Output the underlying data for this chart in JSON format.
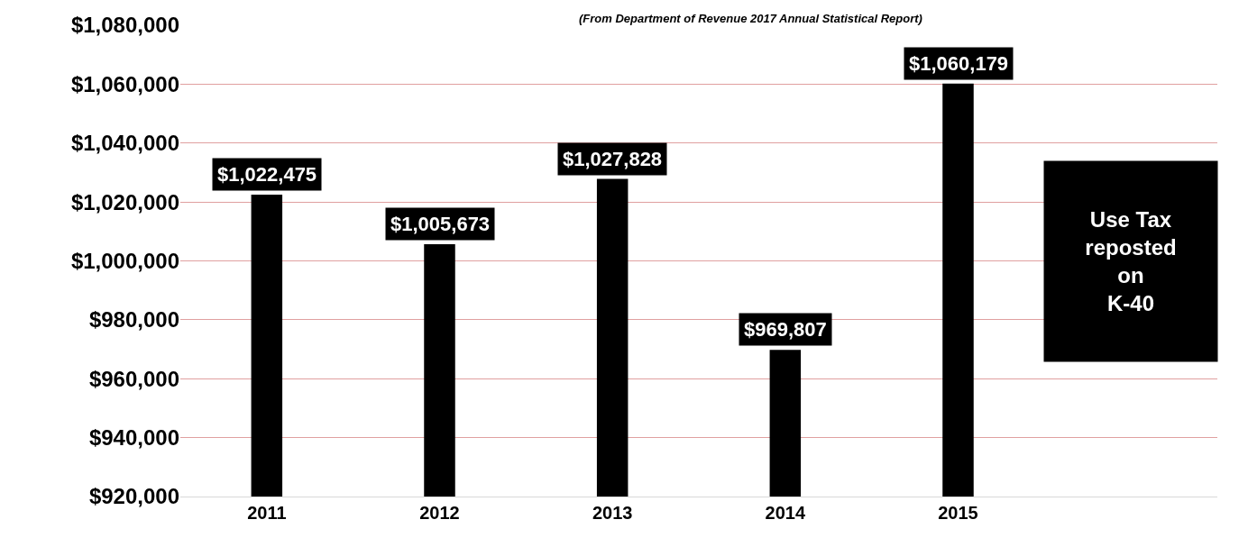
{
  "chart_data": {
    "type": "bar",
    "subtitle": "(From Department of Revenue 2017 Annual Statistical Report)",
    "categories": [
      "2011",
      "2012",
      "2013",
      "2014",
      "2015",
      null
    ],
    "values": [
      1022475,
      1005673,
      1027828,
      969807,
      1060179,
      null
    ],
    "value_labels": [
      "$1,022,475",
      "$1,005,673",
      "$1,027,828",
      "$969,807",
      "$1,060,179",
      null
    ],
    "color": "#000000",
    "ylim": [
      920000,
      1080000
    ],
    "yticks": [
      {
        "value": 920000,
        "label": "$920,000"
      },
      {
        "value": 940000,
        "label": "$940,000"
      },
      {
        "value": 960000,
        "label": "$960,000"
      },
      {
        "value": 980000,
        "label": "$980,000"
      },
      {
        "value": 1000000,
        "label": "$1,000,000"
      },
      {
        "value": 1020000,
        "label": "$1,020,000"
      },
      {
        "value": 1040000,
        "label": "$1,040,000"
      },
      {
        "value": 1060000,
        "label": "$1,060,000"
      },
      {
        "value": 1080000,
        "label": "$1,080,000"
      }
    ],
    "grid": "y",
    "annotations": [
      "Use Tax\nreposted\non\nK-40"
    ]
  }
}
